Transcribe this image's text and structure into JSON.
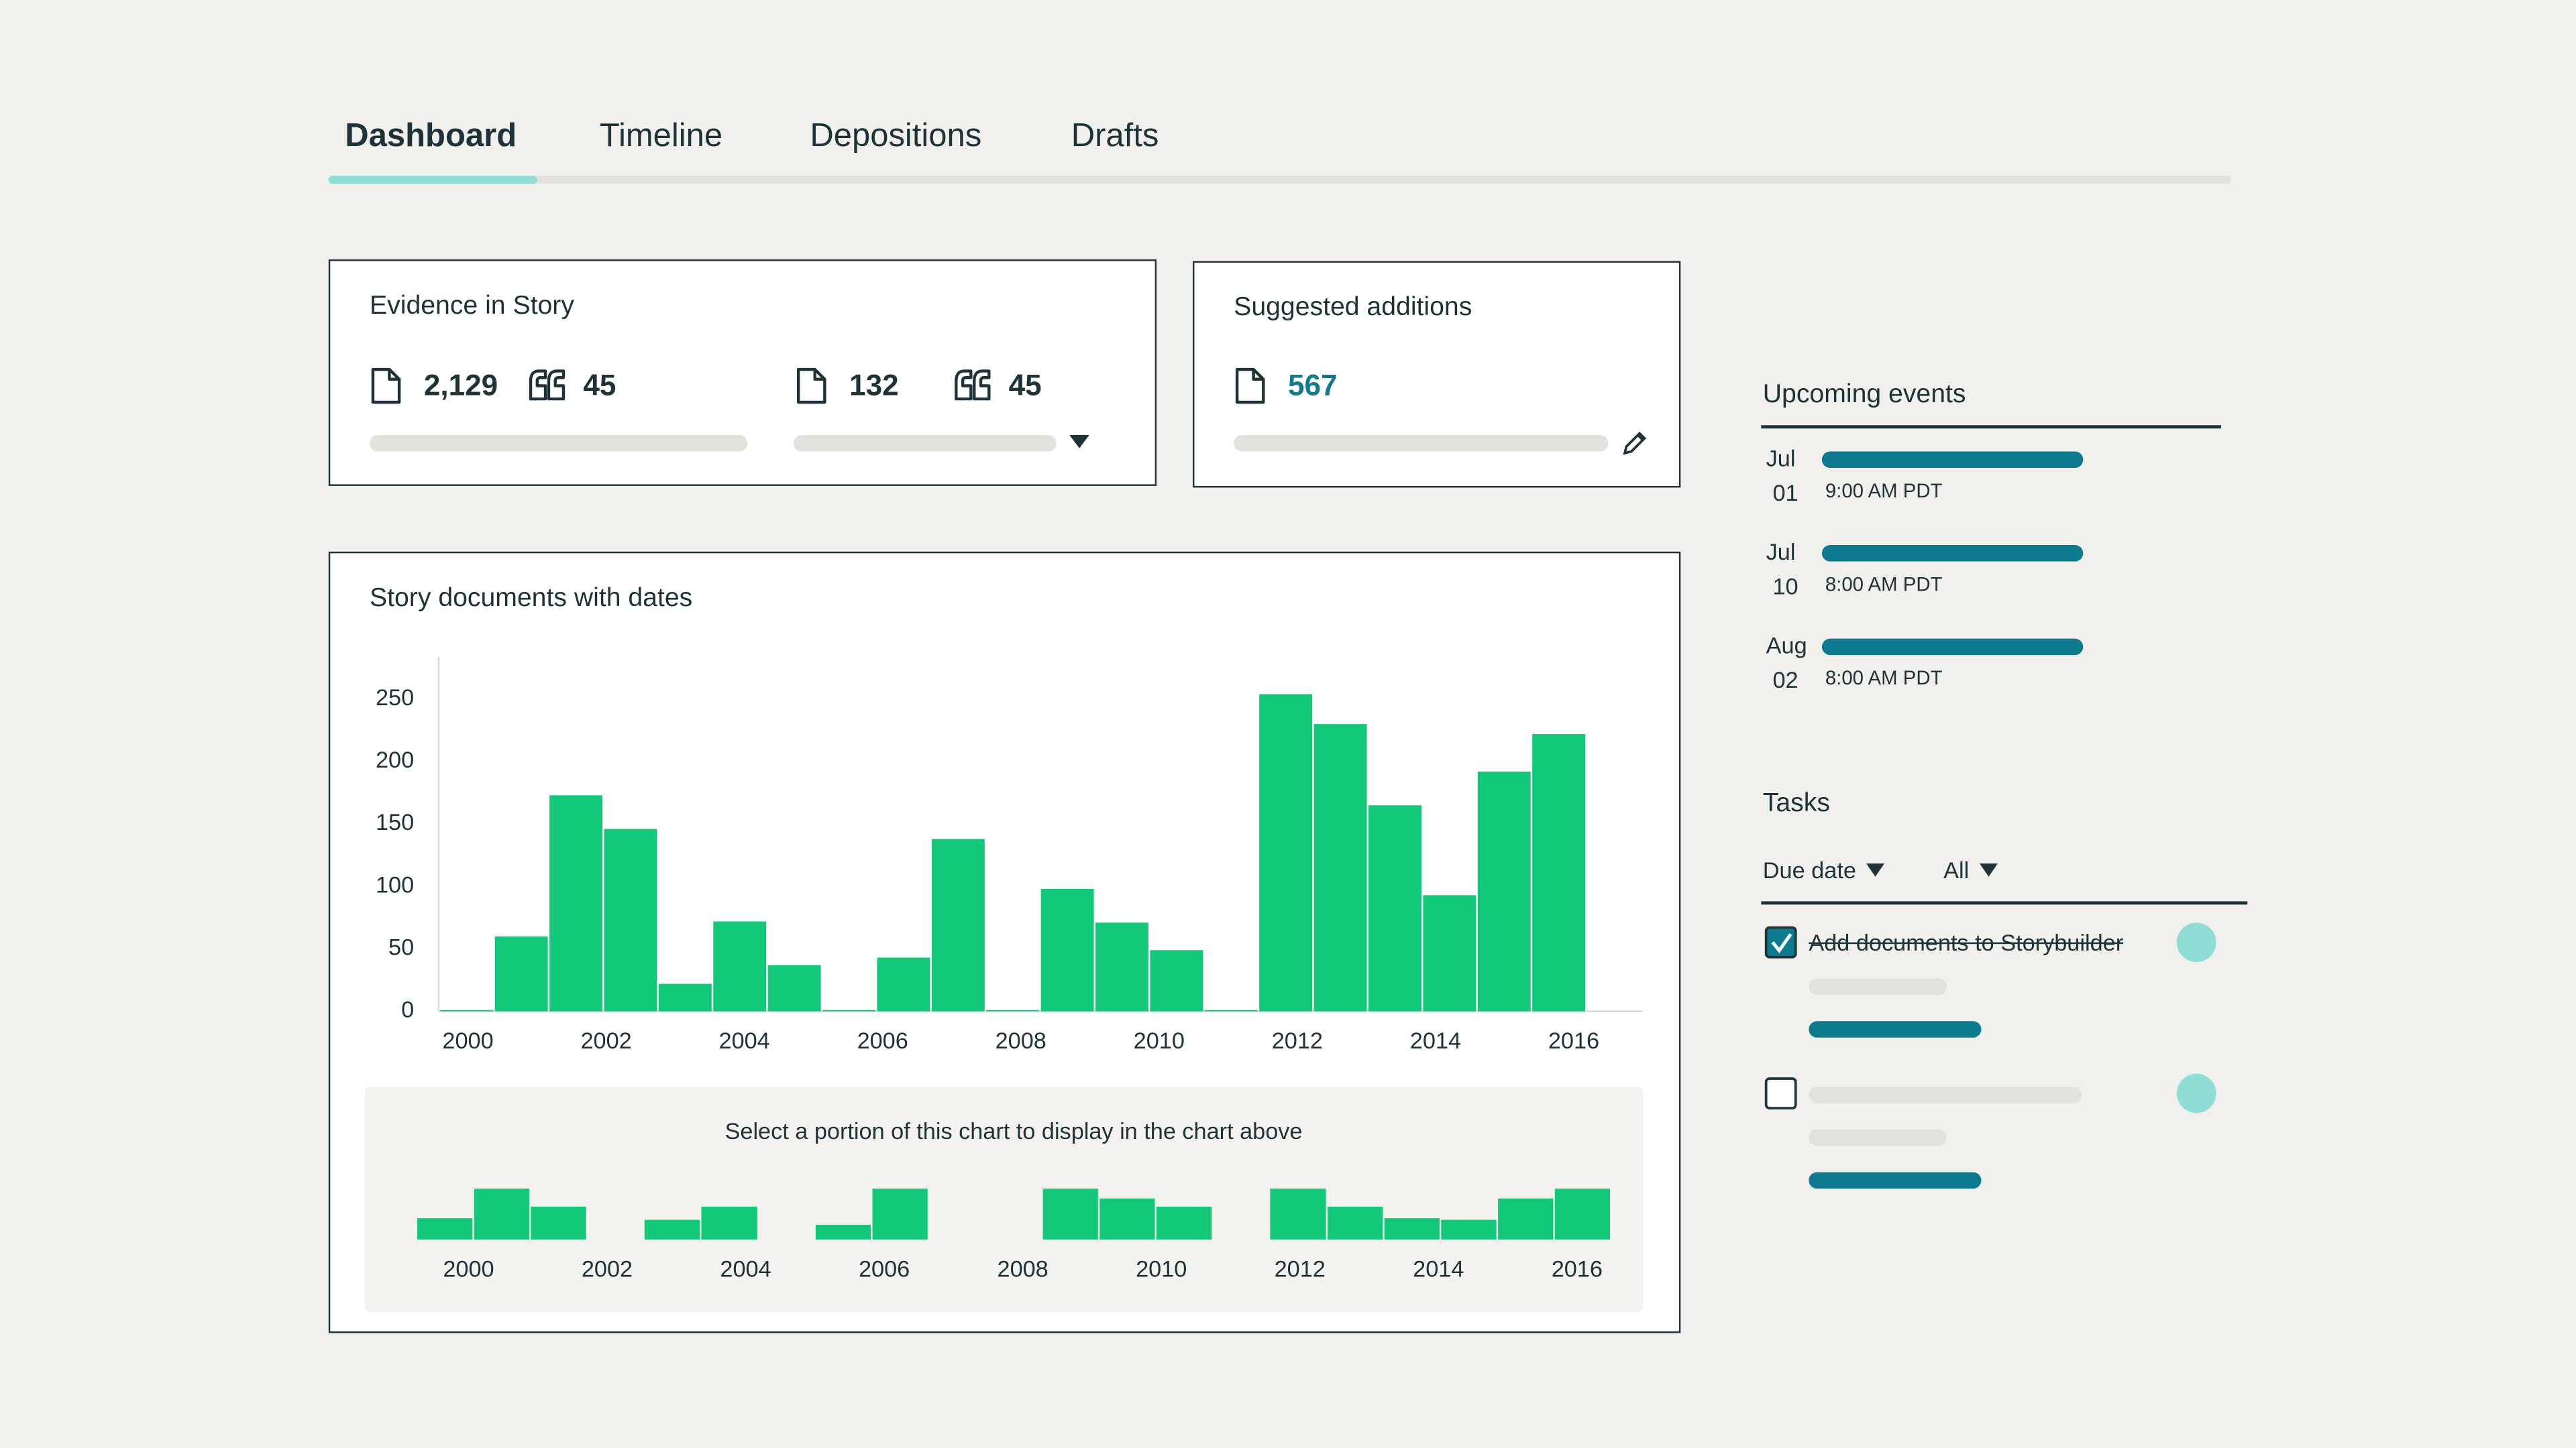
{
  "tabs": [
    "Dashboard",
    "Timeline",
    "Depositions",
    "Drafts"
  ],
  "evidence": {
    "title": "Evidence in Story",
    "groups": [
      {
        "documents": "2,129",
        "quotes": "45"
      },
      {
        "documents": "132",
        "quotes": "45"
      }
    ]
  },
  "suggested": {
    "title": "Suggested additions",
    "documents": "567"
  },
  "chart_data": [
    {
      "type": "histogram",
      "title": "Story documents with dates",
      "color": "#12c97a",
      "bins": [
        1999.6,
        2000.39,
        2001.18,
        2001.97,
        2002.76,
        2003.55,
        2004.34,
        2005.13,
        2005.92,
        2006.71,
        2007.5,
        2008.29,
        2009.08,
        2009.87,
        2010.66,
        2011.45,
        2012.24,
        2013.03,
        2013.82,
        2014.61,
        2015.4,
        2016.19
      ],
      "values": [
        1,
        60,
        173,
        146,
        22,
        72,
        37,
        1,
        43,
        138,
        1,
        98,
        71,
        49,
        1,
        254,
        230,
        165,
        93,
        192,
        222
      ],
      "xlim": [
        1999.6,
        2017.0
      ],
      "xticks": [
        2000,
        2002,
        2004,
        2006,
        2008,
        2010,
        2012,
        2014,
        2016
      ],
      "ylim": [
        0,
        284
      ],
      "yticks": [
        0,
        50,
        100,
        150,
        200,
        250
      ],
      "grid": false
    },
    {
      "type": "histogram",
      "title": "Select a portion of this chart to display in the chart above",
      "color": "#12c97a",
      "bins": [
        1999.26,
        2000.08,
        2000.9,
        2001.72,
        2002.54,
        2003.36,
        2004.19,
        2005.01,
        2005.83,
        2006.65,
        2007.47,
        2008.29,
        2009.11,
        2009.93,
        2010.75,
        2011.57,
        2012.4,
        2013.22,
        2014.04,
        2014.86,
        2015.68,
        2016.5
      ],
      "values": [
        13,
        31,
        20,
        0,
        12,
        20,
        0,
        9,
        31,
        0,
        0,
        31,
        25,
        20,
        0,
        31,
        20,
        13,
        12,
        25,
        31
      ],
      "xlim": [
        1999.26,
        2016.5
      ],
      "xticks": [
        2000,
        2002,
        2004,
        2006,
        2008,
        2010,
        2012,
        2014,
        2016
      ],
      "ylim": [
        0,
        31
      ],
      "grid": false
    }
  ],
  "upcoming": {
    "title": "Upcoming events",
    "events": [
      {
        "month": "Jul",
        "day": "01",
        "time": "9:00 AM PDT"
      },
      {
        "month": "Jul",
        "day": "10",
        "time": "8:00 AM PDT"
      },
      {
        "month": "Aug",
        "day": "02",
        "time": "8:00 AM PDT"
      }
    ]
  },
  "tasks": {
    "title": "Tasks",
    "filters": [
      "Due date",
      "All"
    ],
    "items": [
      {
        "label": "Add documents to Storybuilder",
        "done": true
      },
      {
        "done": false
      }
    ]
  }
}
